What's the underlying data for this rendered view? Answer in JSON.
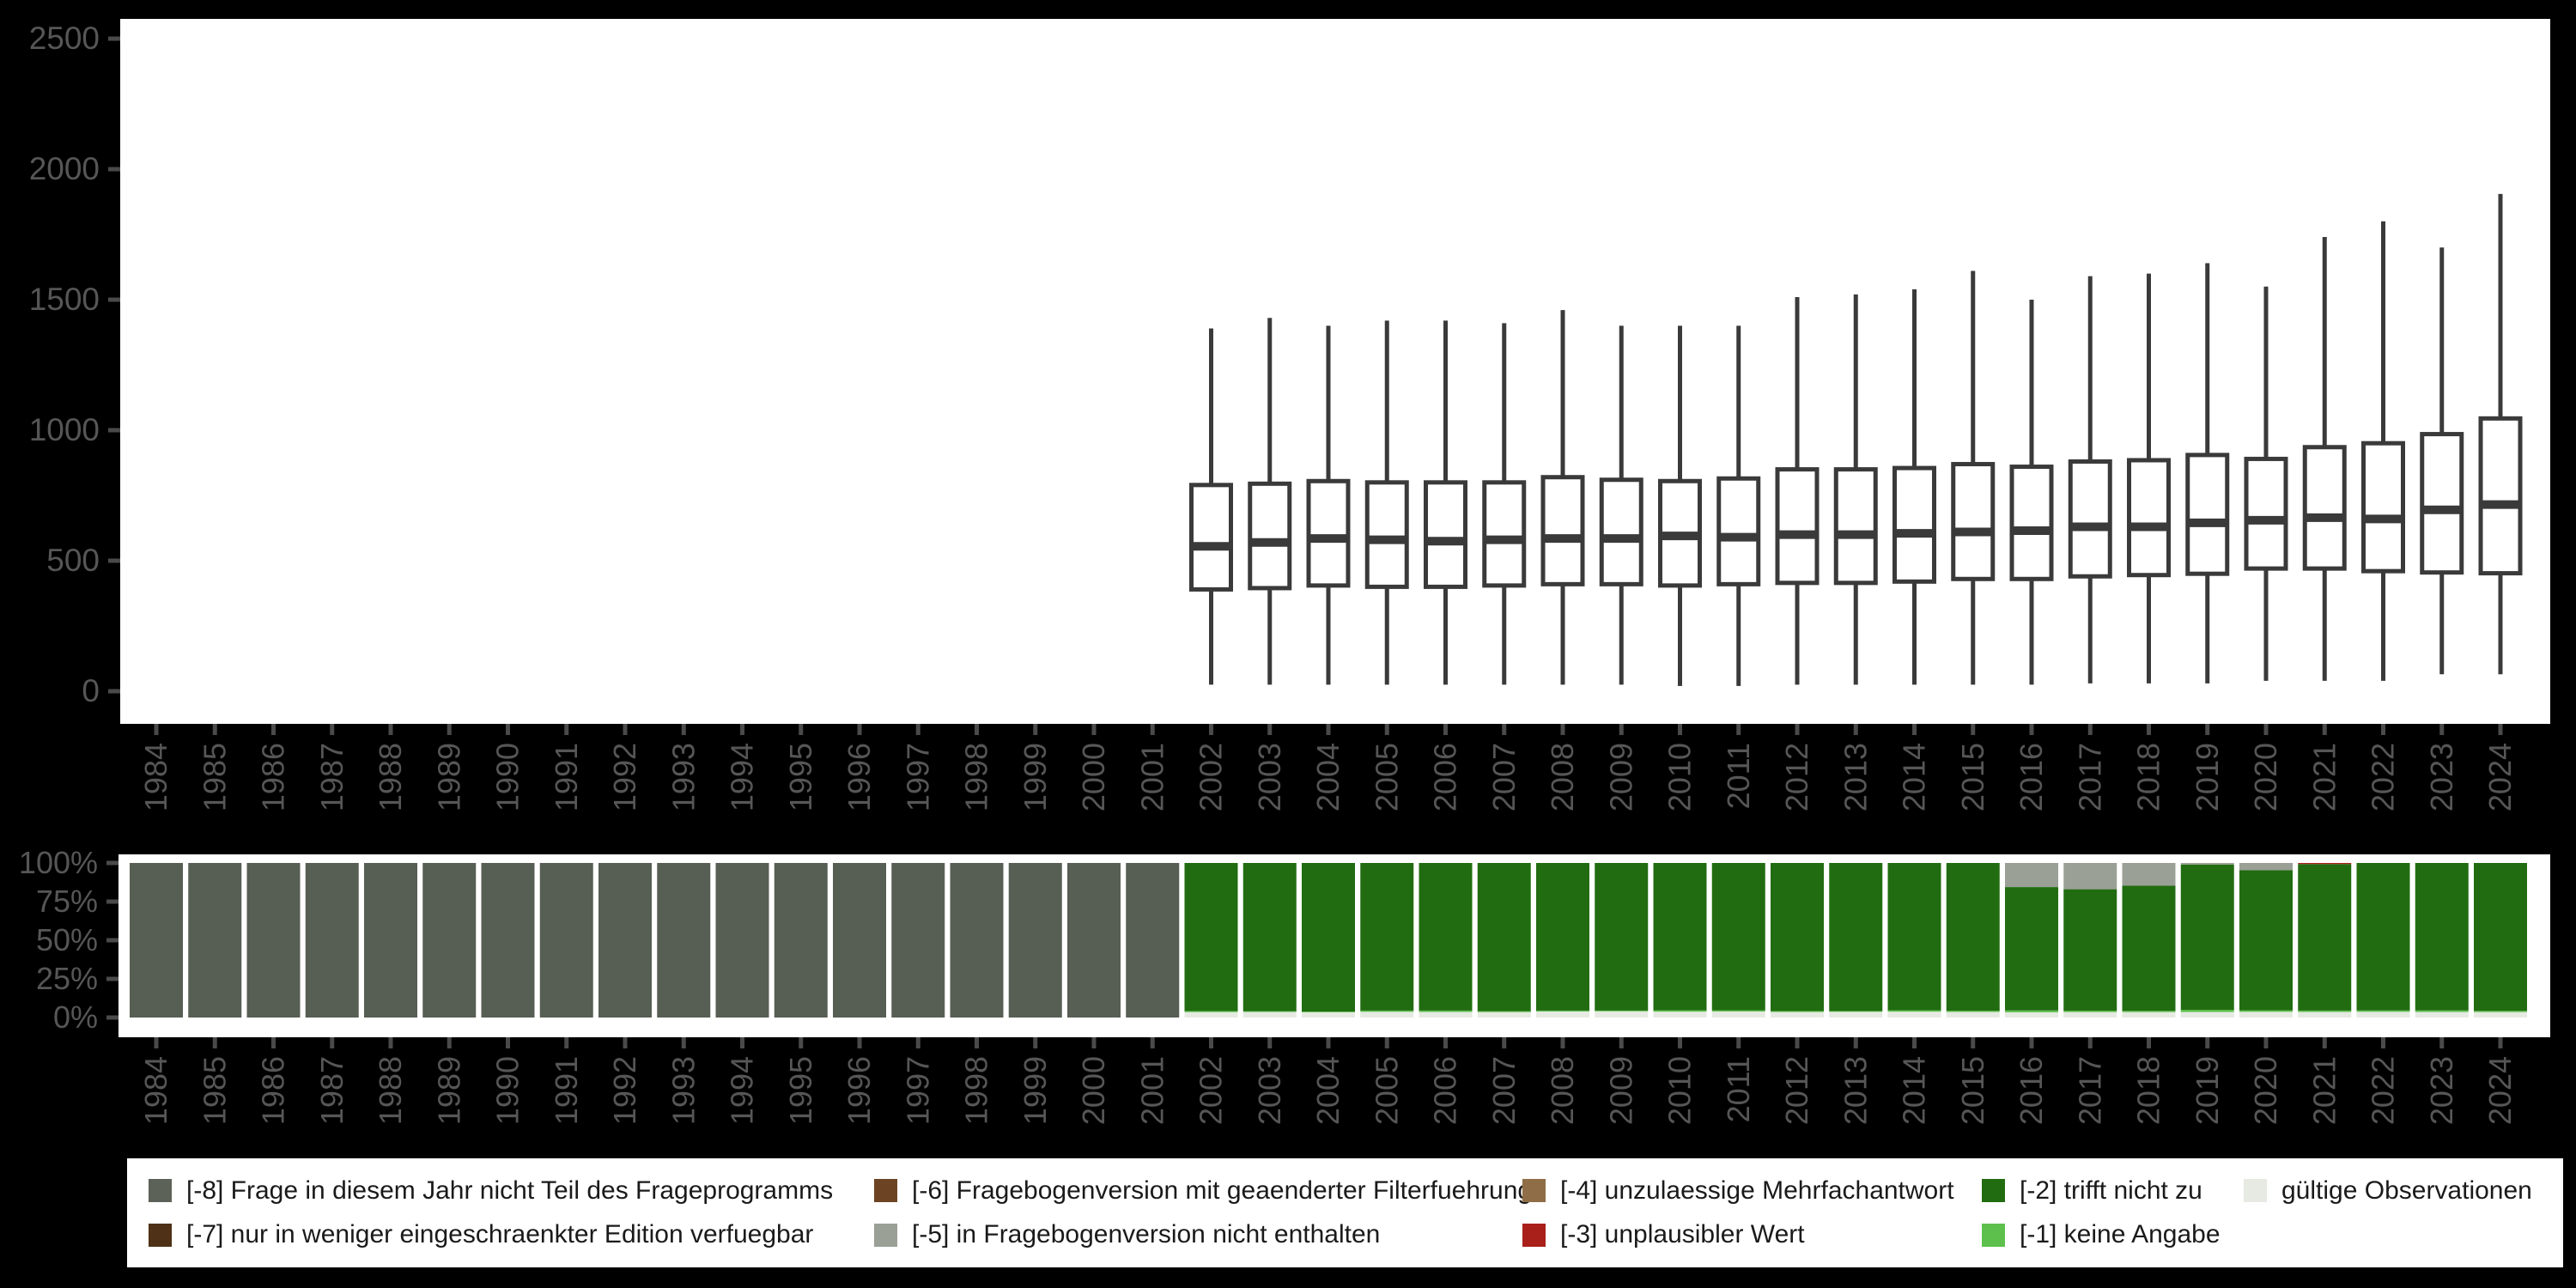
{
  "colors": {
    "background": "#000000",
    "panel": "#ffffff",
    "axis_text": "#565656",
    "axis_tick": "#4a4a4a",
    "box_stroke": "#3a3a3a",
    "legend_text": "#1a1a1a"
  },
  "legend": {
    "items": [
      {
        "key": "-8",
        "label": "[-8] Frage in diesem Jahr nicht Teil des Frageprogramms",
        "color": "#5c6258"
      },
      {
        "key": "-7",
        "label": "[-7] nur in weniger eingeschraenkter Edition verfuegbar",
        "color": "#4e3117"
      },
      {
        "key": "-6",
        "label": "[-6] Fragebogenversion mit geaenderter Filterfuehrung",
        "color": "#6d4423"
      },
      {
        "key": "-5",
        "label": "[-5] in Fragebogenversion nicht enthalten",
        "color": "#9aa096"
      },
      {
        "key": "-4",
        "label": "[-4] unzulaessige Mehrfachantwort",
        "color": "#8f6d46"
      },
      {
        "key": "-3",
        "label": "[-3] unplausibler Wert",
        "color": "#a9201a"
      },
      {
        "key": "-2",
        "label": "[-2] trifft nicht zu",
        "color": "#216c10"
      },
      {
        "key": "-1",
        "label": "[-1] keine Angabe",
        "color": "#5dc04c"
      },
      {
        "key": "valid",
        "label": "gültige Observationen",
        "color": "#e6eae2"
      }
    ]
  },
  "chart_data": [
    {
      "type": "boxplot",
      "title": "",
      "xlabel": "",
      "ylabel": "",
      "grid": false,
      "ylim": [
        -120,
        2580
      ],
      "yticks": [
        0,
        500,
        1000,
        1500,
        2000,
        2500
      ],
      "categories": [
        "1984",
        "1985",
        "1986",
        "1987",
        "1988",
        "1989",
        "1990",
        "1991",
        "1992",
        "1993",
        "1994",
        "1995",
        "1996",
        "1997",
        "1998",
        "1999",
        "2000",
        "2001",
        "2002",
        "2003",
        "2004",
        "2005",
        "2006",
        "2007",
        "2008",
        "2009",
        "2010",
        "2011",
        "2012",
        "2013",
        "2014",
        "2015",
        "2016",
        "2017",
        "2018",
        "2019",
        "2020",
        "2021",
        "2022",
        "2023",
        "2024"
      ],
      "boxes": [
        null,
        null,
        null,
        null,
        null,
        null,
        null,
        null,
        null,
        null,
        null,
        null,
        null,
        null,
        null,
        null,
        null,
        null,
        {
          "low": 25,
          "q1": 390,
          "median": 555,
          "q3": 790,
          "high": 1390
        },
        {
          "low": 25,
          "q1": 395,
          "median": 570,
          "q3": 795,
          "high": 1430
        },
        {
          "low": 25,
          "q1": 405,
          "median": 585,
          "q3": 805,
          "high": 1400
        },
        {
          "low": 25,
          "q1": 400,
          "median": 580,
          "q3": 800,
          "high": 1420
        },
        {
          "low": 25,
          "q1": 400,
          "median": 575,
          "q3": 800,
          "high": 1420
        },
        {
          "low": 25,
          "q1": 405,
          "median": 580,
          "q3": 800,
          "high": 1410
        },
        {
          "low": 25,
          "q1": 410,
          "median": 585,
          "q3": 820,
          "high": 1460
        },
        {
          "low": 25,
          "q1": 410,
          "median": 585,
          "q3": 810,
          "high": 1400
        },
        {
          "low": 20,
          "q1": 405,
          "median": 595,
          "q3": 805,
          "high": 1400
        },
        {
          "low": 20,
          "q1": 410,
          "median": 590,
          "q3": 815,
          "high": 1400
        },
        {
          "low": 25,
          "q1": 415,
          "median": 600,
          "q3": 850,
          "high": 1510
        },
        {
          "low": 25,
          "q1": 415,
          "median": 600,
          "q3": 850,
          "high": 1520
        },
        {
          "low": 25,
          "q1": 420,
          "median": 605,
          "q3": 855,
          "high": 1540
        },
        {
          "low": 25,
          "q1": 430,
          "median": 610,
          "q3": 870,
          "high": 1610
        },
        {
          "low": 25,
          "q1": 430,
          "median": 615,
          "q3": 860,
          "high": 1500
        },
        {
          "low": 30,
          "q1": 440,
          "median": 630,
          "q3": 880,
          "high": 1590
        },
        {
          "low": 30,
          "q1": 445,
          "median": 630,
          "q3": 885,
          "high": 1600
        },
        {
          "low": 30,
          "q1": 450,
          "median": 645,
          "q3": 905,
          "high": 1640
        },
        {
          "low": 40,
          "q1": 470,
          "median": 655,
          "q3": 890,
          "high": 1550
        },
        {
          "low": 40,
          "q1": 470,
          "median": 665,
          "q3": 935,
          "high": 1740
        },
        {
          "low": 40,
          "q1": 460,
          "median": 660,
          "q3": 950,
          "high": 1800
        },
        {
          "low": 65,
          "q1": 455,
          "median": 695,
          "q3": 985,
          "high": 1700
        },
        {
          "low": 65,
          "q1": 452,
          "median": 715,
          "q3": 1045,
          "high": 1905
        }
      ]
    },
    {
      "type": "bar",
      "stacked": true,
      "units": "percent",
      "title": "",
      "xlabel": "",
      "ylabel": "",
      "ylim": [
        0,
        100
      ],
      "ytick_labels": [
        "0%",
        "25%",
        "50%",
        "75%",
        "100%"
      ],
      "ytick_values": [
        0,
        25,
        50,
        75,
        100
      ],
      "categories": [
        "1984",
        "1985",
        "1986",
        "1987",
        "1988",
        "1989",
        "1990",
        "1991",
        "1992",
        "1993",
        "1994",
        "1995",
        "1996",
        "1997",
        "1998",
        "1999",
        "2000",
        "2001",
        "2002",
        "2003",
        "2004",
        "2005",
        "2006",
        "2007",
        "2008",
        "2009",
        "2010",
        "2011",
        "2012",
        "2013",
        "2014",
        "2015",
        "2016",
        "2017",
        "2018",
        "2019",
        "2020",
        "2021",
        "2022",
        "2023",
        "2024"
      ],
      "series": [
        {
          "name": "gültige Observationen",
          "legend_key": "valid",
          "color": "#e6eae2",
          "values": [
            0,
            0,
            0,
            0,
            0,
            0,
            0,
            0,
            0,
            0,
            0,
            0,
            0,
            0,
            0,
            0,
            0,
            0,
            3.5,
            3.6,
            3.4,
            3.7,
            3.6,
            3.5,
            3.9,
            4.0,
            3.8,
            3.9,
            3.6,
            3.7,
            3.8,
            3.6,
            3.4,
            3.5,
            3.5,
            3.6,
            3.7,
            3.6,
            3.7,
            3.6,
            3.5
          ]
        },
        {
          "name": "[-1] keine Angabe",
          "legend_key": "-1",
          "color": "#5dc04c",
          "values": [
            0,
            0,
            0,
            0,
            0,
            0,
            0,
            0,
            0,
            0,
            0,
            0,
            0,
            0,
            0,
            0,
            0,
            0,
            0.7,
            0.5,
            0.5,
            0.8,
            0.9,
            0.6,
            0.6,
            0.5,
            0.9,
            0.8,
            0.6,
            0.5,
            0.9,
            0.8,
            1.2,
            0.9,
            0.8,
            1.4,
            1.0,
            0.9,
            0.9,
            1.0,
            0.8
          ]
        },
        {
          "name": "[-2] trifft nicht zu",
          "legend_key": "-2",
          "color": "#216c10",
          "values": [
            0,
            0,
            0,
            0,
            0,
            0,
            0,
            0,
            0,
            0,
            0,
            0,
            0,
            0,
            0,
            0,
            0,
            0,
            95.8,
            95.9,
            96.1,
            95.5,
            95.5,
            95.9,
            95.5,
            95.5,
            95.3,
            95.3,
            95.8,
            95.8,
            95.3,
            95.6,
            79.8,
            78.6,
            81.0,
            94.0,
            90.6,
            94.8,
            95.4,
            95.4,
            95.7
          ]
        },
        {
          "name": "[-5] in Fragebogenversion nicht enthalten",
          "legend_key": "-5",
          "color": "#9aa096",
          "values": [
            0,
            0,
            0,
            0,
            0,
            0,
            0,
            0,
            0,
            0,
            0,
            0,
            0,
            0,
            0,
            0,
            0,
            0,
            0,
            0,
            0,
            0,
            0,
            0,
            0,
            0,
            0,
            0,
            0,
            0,
            0,
            0,
            15.6,
            17.0,
            14.7,
            1.0,
            4.7,
            0,
            0,
            0,
            0
          ]
        },
        {
          "name": "[-3] unplausibler Wert",
          "legend_key": "-3",
          "color": "#a9201a",
          "values": [
            0,
            0,
            0,
            0,
            0,
            0,
            0,
            0,
            0,
            0,
            0,
            0,
            0,
            0,
            0,
            0,
            0,
            0,
            0,
            0,
            0,
            0,
            0,
            0,
            0,
            0,
            0,
            0,
            0,
            0,
            0,
            0,
            0,
            0,
            0,
            0,
            0,
            0.7,
            0,
            0,
            0
          ]
        },
        {
          "name": "[-8] Frage in diesem Jahr nicht Teil des Frageprogramms",
          "legend_key": "-8",
          "color": "#575e53",
          "values": [
            100,
            100,
            100,
            100,
            100,
            100,
            100,
            100,
            100,
            100,
            100,
            100,
            100,
            100,
            100,
            100,
            100,
            100,
            0,
            0,
            0,
            0,
            0,
            0,
            0,
            0,
            0,
            0,
            0,
            0,
            0,
            0,
            0,
            0,
            0,
            0,
            0,
            0,
            0,
            0,
            0
          ]
        }
      ]
    }
  ]
}
